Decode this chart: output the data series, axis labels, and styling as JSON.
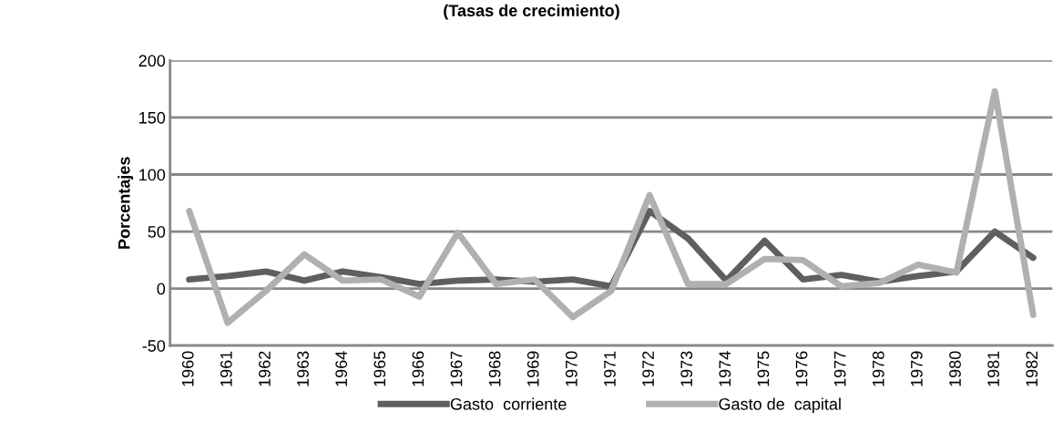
{
  "chart_data": {
    "type": "line",
    "title": "(Tasas de crecimiento)",
    "ylabel": "Porcentajes",
    "categories": [
      "1960",
      "1961",
      "1962",
      "1963",
      "1964",
      "1965",
      "1966",
      "1967",
      "1968",
      "1969",
      "1970",
      "1971",
      "1972",
      "1973",
      "1974",
      "1975",
      "1976",
      "1977",
      "1978",
      "1979",
      "1980",
      "1981",
      "1982"
    ],
    "series": [
      {
        "name": "Gasto  corriente",
        "color": "#5f5f5f",
        "values": [
          8,
          11,
          15,
          7,
          15,
          10,
          4,
          7,
          8,
          6,
          8,
          2,
          68,
          44,
          7,
          42,
          8,
          12,
          6,
          11,
          15,
          50,
          27
        ]
      },
      {
        "name": "Gasto de  capital",
        "color": "#b0b0b0",
        "values": [
          68,
          -30,
          -2,
          30,
          7,
          8,
          -7,
          49,
          4,
          8,
          -25,
          -2,
          82,
          4,
          4,
          26,
          25,
          2,
          5,
          21,
          14,
          173,
          -23
        ]
      }
    ],
    "ylim": [
      -50,
      200
    ],
    "yticks": [
      -50,
      0,
      50,
      100,
      150,
      200
    ],
    "grid": "y",
    "legend": "bottom",
    "marker": "none",
    "line_style": "solid"
  }
}
